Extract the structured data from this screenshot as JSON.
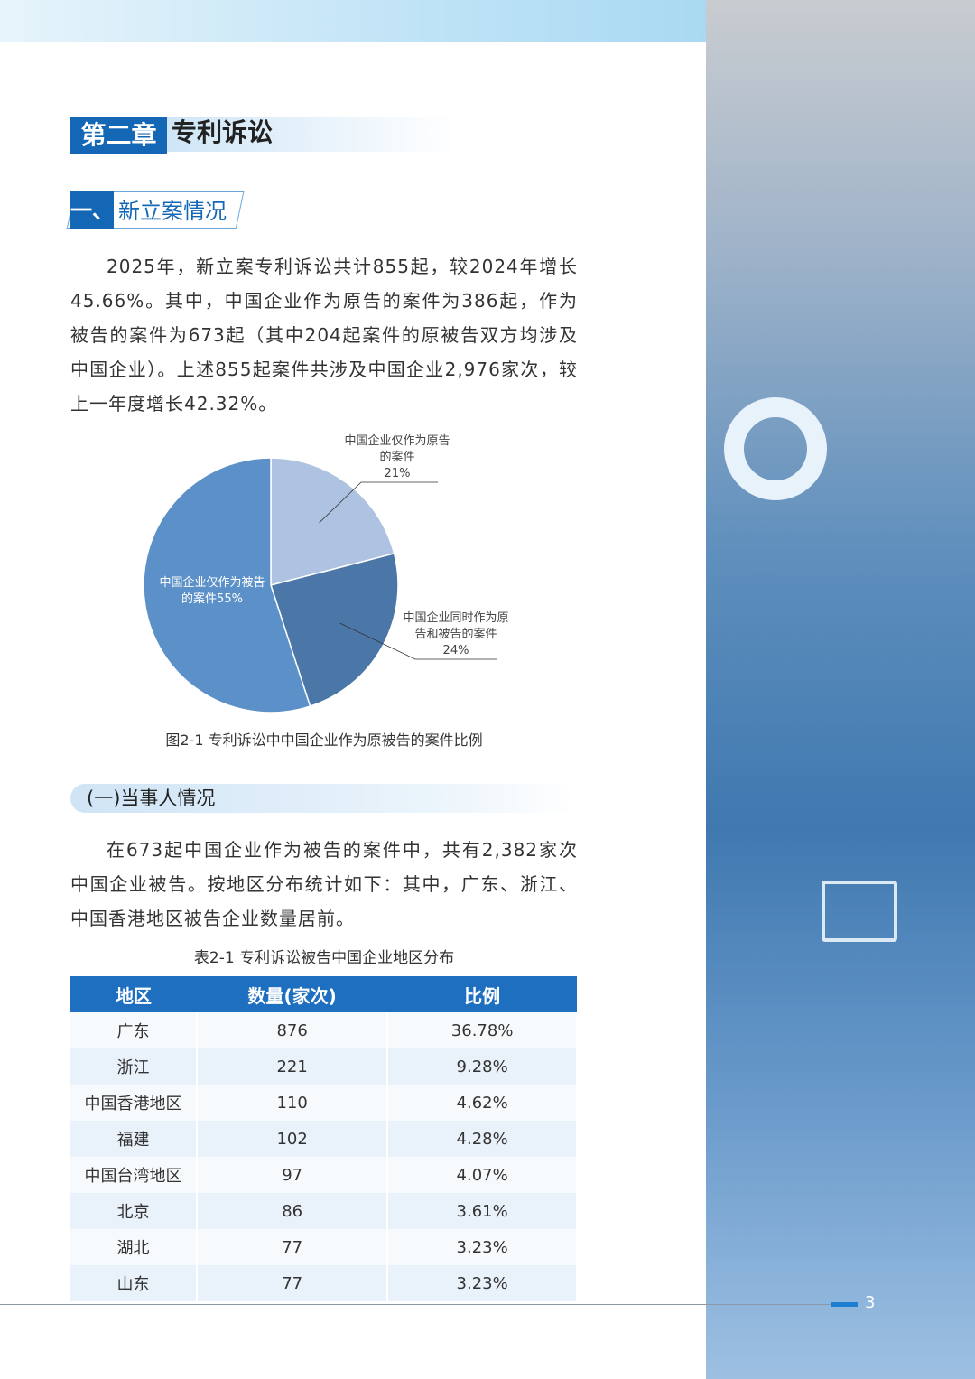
{
  "header": {
    "chapter": "第二章",
    "chapter_title": "专利诉讼"
  },
  "section": {
    "number": "一、",
    "title": "新立案情况"
  },
  "paragraphs": [
    "2025年，新立案专利诉讼共计855起，较2024年增长45.66%。其中，中国企业作为原告的案件为386起，作为被告的案件为673起（其中204起案件的原被告双方均涉及中国企业）。上述855起案件共涉及中国企业2,976家次，较上一年度增长42.32%。",
    "在673起中国企业作为被告的案件中，共有2,382家次中国企业被告。按地区分布统计如下：其中，广东、浙江、中国香港地区被告企业数量居前。"
  ],
  "subsection": "(一)当事人情况",
  "chart_data": {
    "type": "pie",
    "title": "图2-1 专利诉讼中中国企业作为原被告的案件比例",
    "categories": [
      "中国企业仅作为原告的案件",
      "中国企业同时作为原告和被告的案件",
      "中国企业仅作为被告的案件"
    ],
    "values": [
      21,
      24,
      55
    ],
    "value_labels": [
      "21%",
      "24%",
      "55%"
    ],
    "colors": [
      "#aec3e2",
      "#4a77a8",
      "#5b90c8"
    ]
  },
  "table": {
    "caption": "表2-1 专利诉讼被告中国企业地区分布",
    "header": [
      "地区",
      "数量(家次)",
      "比例"
    ],
    "rows": [
      [
        "广东",
        "876",
        "36.78%"
      ],
      [
        "浙江",
        "221",
        "9.28%"
      ],
      [
        "中国香港地区",
        "110",
        "4.62%"
      ],
      [
        "福建",
        "102",
        "4.28%"
      ],
      [
        "中国台湾地区",
        "97",
        "4.07%"
      ],
      [
        "北京",
        "86",
        "3.61%"
      ],
      [
        "湖北",
        "77",
        "3.23%"
      ],
      [
        "山东",
        "77",
        "3.23%"
      ]
    ]
  },
  "page_number": "3"
}
